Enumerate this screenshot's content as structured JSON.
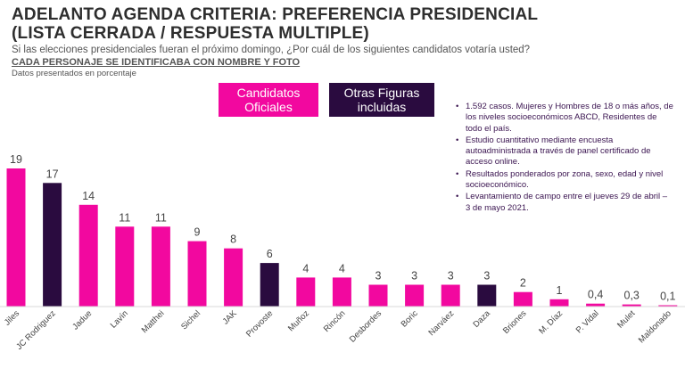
{
  "header": {
    "title_line1": "ADELANTO AGENDA CRITERIA: PREFERENCIA PRESIDENCIAL",
    "title_line2": "(LISTA CERRADA / RESPUESTA MULTIPLE)",
    "question": "Si las elecciones presidenciales fueran el próximo domingo, ¿Por cuál de los siguientes candidatos votaría usted?",
    "subheading": "CADA PERSONAJE SE IDENTIFICABA CON NOMBRE Y FOTO",
    "units_note": "Datos presentados en porcentaje"
  },
  "legend": {
    "official": "Candidatos\nOficiales",
    "other": "Otras Figuras\nincluidas"
  },
  "notes": [
    "1.592 casos. Mujeres y Hombres de 18 o más años, de los niveles socioeconómicos ABCD, Residentes de todo el país.",
    "Estudio cuantitativo mediante encuesta autoadministrada a través de panel certificado de acceso online.",
    "Resultados ponderados por zona, sexo, edad y nivel socioeconómico.",
    "Levantamiento de campo entre el jueves 29 de abril – 3 de mayo 2021."
  ],
  "colors": {
    "official": "#f2089f",
    "other": "#2a0b3f",
    "label_text": "#444444",
    "axis": "#d9d9d9"
  },
  "chart_data": {
    "type": "bar",
    "categories": [
      "Jiles",
      "JC Rodriguez",
      "Jadue",
      "Lavín",
      "Matthei",
      "Sichel",
      "JAK",
      "Provoste",
      "Muñoz",
      "Rincón",
      "Desbordes",
      "Boric",
      "Narváez",
      "Daza",
      "Briones",
      "M. Díaz",
      "P. Vidal",
      "Mulet",
      "Maldonado"
    ],
    "values": [
      19,
      17,
      14,
      11,
      11,
      9,
      8,
      6,
      4,
      4,
      3,
      3,
      3,
      3,
      2,
      1,
      0.4,
      0.3,
      0.1
    ],
    "value_labels": [
      "19",
      "17",
      "14",
      "11",
      "11",
      "9",
      "8",
      "6",
      "4",
      "4",
      "3",
      "3",
      "3",
      "3",
      "2",
      "1",
      "0,4",
      "0,3",
      "0,1"
    ],
    "groups": [
      "official",
      "other",
      "official",
      "official",
      "official",
      "official",
      "official",
      "other",
      "official",
      "official",
      "official",
      "official",
      "official",
      "other",
      "official",
      "official",
      "official",
      "official",
      "official"
    ],
    "ylim": [
      0,
      19
    ],
    "grid": false
  }
}
